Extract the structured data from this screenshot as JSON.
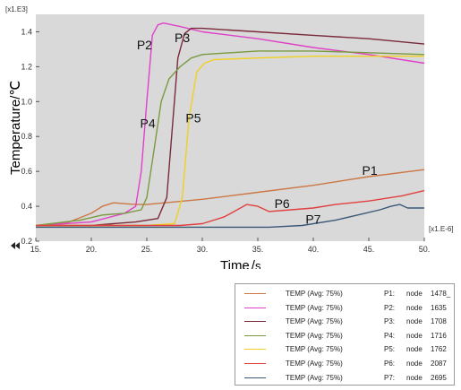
{
  "chart_data": {
    "type": "line",
    "x_scale_label": "[x1.E-6]",
    "y_scale_label": "[x1.E3]",
    "xlabel": "Time",
    "xunit": "s",
    "ylabel": "Temperature/",
    "yunit": "℃",
    "xlim": [
      15,
      50
    ],
    "ylim": [
      0.2,
      1.5
    ],
    "x_ticks": [
      15,
      20,
      25,
      30,
      35,
      40,
      45,
      50
    ],
    "x_tick_labels": [
      "15.",
      "20.",
      "25.",
      "30.",
      "35.",
      "40.",
      "45.",
      "50."
    ],
    "y_ticks": [
      0.2,
      0.4,
      0.6,
      0.8,
      1.0,
      1.2,
      1.4
    ],
    "y_tick_labels": [
      "0.2",
      "0.4",
      "0.6",
      "0.8",
      "1.0",
      "1.2",
      "1.4"
    ],
    "series": [
      {
        "name": "P1",
        "color": "#cc7744",
        "x": [
          15,
          18,
          20,
          21,
          22,
          23,
          24,
          25,
          30,
          35,
          40,
          45,
          50
        ],
        "y": [
          0.29,
          0.31,
          0.36,
          0.4,
          0.42,
          0.415,
          0.41,
          0.41,
          0.44,
          0.48,
          0.52,
          0.57,
          0.61
        ],
        "label": "P1",
        "label_at": [
          44.4,
          0.58
        ]
      },
      {
        "name": "P2",
        "color": "#e040c8",
        "x": [
          15,
          20,
          23,
          24,
          24.5,
          25,
          25.5,
          26,
          26.5,
          28,
          30,
          35,
          40,
          45,
          50
        ],
        "y": [
          0.29,
          0.31,
          0.36,
          0.4,
          0.6,
          1.0,
          1.38,
          1.44,
          1.45,
          1.43,
          1.4,
          1.36,
          1.31,
          1.27,
          1.22
        ],
        "label": "P2",
        "label_at": [
          24.1,
          1.3
        ]
      },
      {
        "name": "P3",
        "color": "#7a2a3a",
        "x": [
          15,
          20,
          22,
          24,
          26,
          26.8,
          27.3,
          27.8,
          28.4,
          29,
          30,
          35,
          40,
          45,
          50
        ],
        "y": [
          0.29,
          0.29,
          0.3,
          0.31,
          0.33,
          0.45,
          0.85,
          1.25,
          1.39,
          1.42,
          1.42,
          1.4,
          1.38,
          1.36,
          1.33
        ],
        "label": "P3",
        "label_at": [
          27.5,
          1.34
        ]
      },
      {
        "name": "P4",
        "color": "#7a9a40",
        "x": [
          15,
          19,
          21,
          23,
          24.5,
          25,
          25.6,
          26.3,
          27,
          28,
          29,
          30,
          35,
          40,
          45,
          50
        ],
        "y": [
          0.29,
          0.32,
          0.35,
          0.36,
          0.38,
          0.45,
          0.7,
          1.0,
          1.13,
          1.2,
          1.25,
          1.27,
          1.29,
          1.29,
          1.28,
          1.27
        ],
        "label": "P4",
        "label_at": [
          24.4,
          0.85
        ]
      },
      {
        "name": "P5",
        "color": "#f0d020",
        "x": [
          15,
          20,
          25,
          27.5,
          28.2,
          28.8,
          29.5,
          30.2,
          31,
          35,
          40,
          45,
          50
        ],
        "y": [
          0.29,
          0.29,
          0.29,
          0.3,
          0.45,
          0.9,
          1.17,
          1.22,
          1.24,
          1.25,
          1.26,
          1.26,
          1.26
        ],
        "label": "P5",
        "label_at": [
          28.5,
          0.88
        ]
      },
      {
        "name": "P6",
        "color": "#e04040",
        "x": [
          15,
          25,
          28,
          30,
          32,
          34,
          35,
          36,
          38,
          40,
          42,
          45,
          48,
          50
        ],
        "y": [
          0.29,
          0.29,
          0.29,
          0.3,
          0.34,
          0.41,
          0.4,
          0.37,
          0.38,
          0.39,
          0.41,
          0.43,
          0.46,
          0.49
        ],
        "label": "P6",
        "label_at": [
          36.5,
          0.39
        ]
      },
      {
        "name": "P7",
        "color": "#3a5a78",
        "x": [
          15,
          30,
          36,
          39,
          42,
          44,
          46,
          47,
          47.8,
          48.5,
          50
        ],
        "y": [
          0.28,
          0.28,
          0.28,
          0.29,
          0.32,
          0.35,
          0.38,
          0.4,
          0.41,
          0.39,
          0.39
        ],
        "label": "P7",
        "label_at": [
          39.3,
          0.3
        ]
      }
    ],
    "grid": false,
    "background": "#d9d9d9"
  },
  "legend": {
    "rows": [
      {
        "variable": "TEMP (Avg: 75%)",
        "id": "P1:",
        "node_word": "node",
        "node": "1478_",
        "color": "#cc7744"
      },
      {
        "variable": "TEMP (Avg: 75%)",
        "id": "P2:",
        "node_word": "node",
        "node": "1635",
        "color": "#e040c8"
      },
      {
        "variable": "TEMP (Avg: 75%)",
        "id": "P3:",
        "node_word": "node",
        "node": "1708",
        "color": "#7a2a3a"
      },
      {
        "variable": "TEMP (Avg: 75%)",
        "id": "P4:",
        "node_word": "node",
        "node": "1716",
        "color": "#7a9a40"
      },
      {
        "variable": "TEMP (Avg: 75%)",
        "id": "P5:",
        "node_word": "node",
        "node": "1762",
        "color": "#f0d020"
      },
      {
        "variable": "TEMP (Avg: 75%)",
        "id": "P6:",
        "node_word": "node",
        "node": "2087",
        "color": "#e04040"
      },
      {
        "variable": "TEMP (Avg: 75%)",
        "id": "P7:",
        "node_word": "node",
        "node": "2695",
        "color": "#3a5a78"
      }
    ]
  }
}
